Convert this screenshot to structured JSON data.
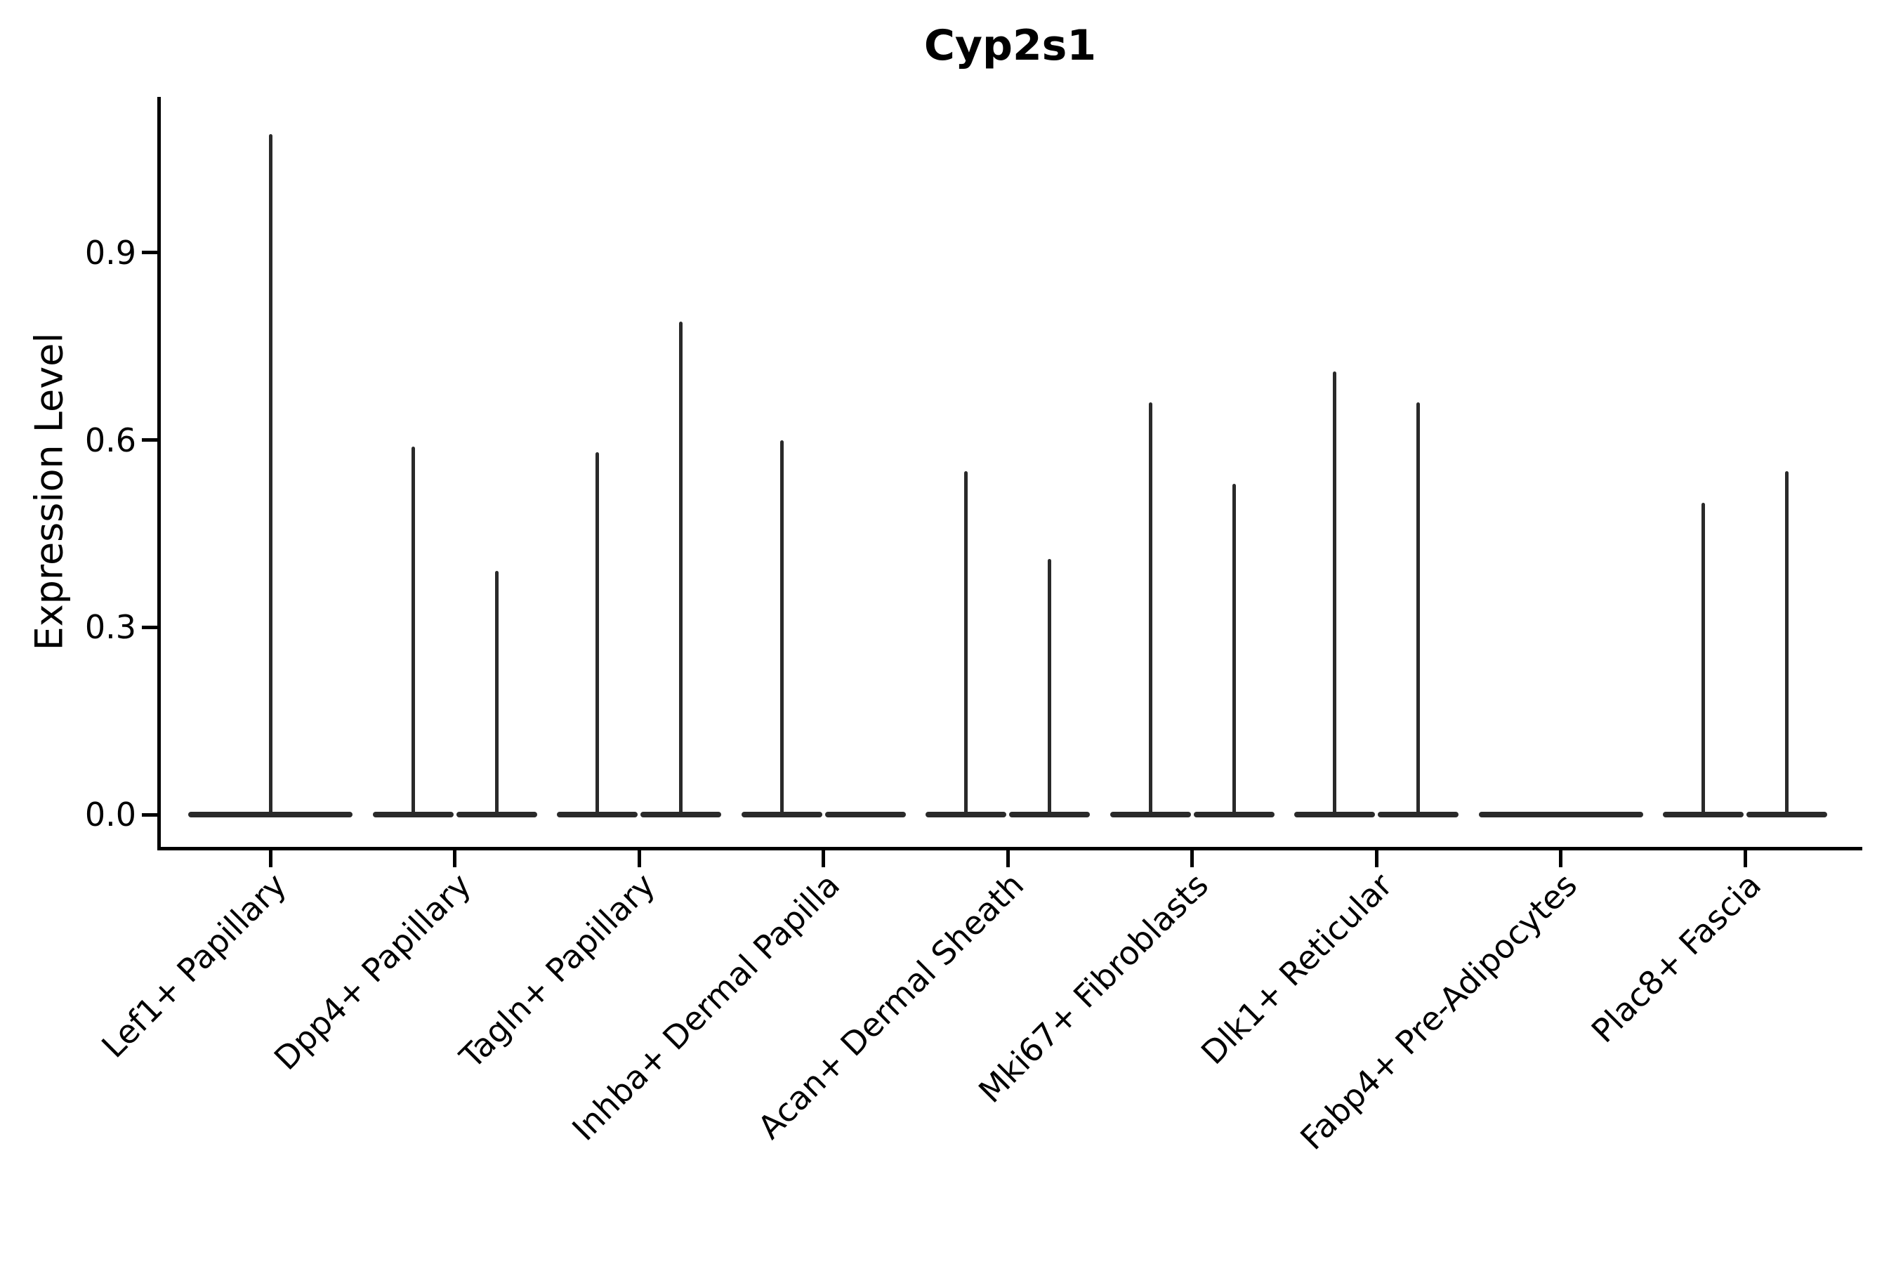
{
  "chart_data": {
    "type": "violin",
    "title": "Cyp2s1",
    "ylabel": "Expression Level",
    "xlabel": "",
    "ylim": [
      -0.05,
      1.15
    ],
    "grid": false,
    "legend": "none",
    "yticks": [
      {
        "value": 0.0,
        "label": "0.0"
      },
      {
        "value": 0.3,
        "label": "0.3"
      },
      {
        "value": 0.6,
        "label": "0.6"
      },
      {
        "value": 0.9,
        "label": "0.9"
      }
    ],
    "categories": [
      "Lef1+ Papillary",
      "Dpp4+ Papillary",
      "Tagln+ Papillary",
      "Inhba+ Dermal Papilla",
      "Acan+ Dermal Sheath",
      "Mki67+ Fibroblasts",
      "Dlk1+ Reticular",
      "Fabp4+ Pre-Adipocytes",
      "Plac8+ Fascia"
    ],
    "groups": [
      {
        "category": "Lef1+ Papillary",
        "violins": [
          {
            "max": 1.09
          }
        ]
      },
      {
        "category": "Dpp4+ Papillary",
        "violins": [
          {
            "max": 0.59
          },
          {
            "max": 0.39
          }
        ]
      },
      {
        "category": "Tagln+ Papillary",
        "violins": [
          {
            "max": 0.58
          },
          {
            "max": 0.79
          }
        ]
      },
      {
        "category": "Inhba+ Dermal Papilla",
        "violins": [
          {
            "max": 0.6
          },
          {
            "max": 0.0
          }
        ]
      },
      {
        "category": "Acan+ Dermal Sheath",
        "violins": [
          {
            "max": 0.55
          },
          {
            "max": 0.41
          }
        ]
      },
      {
        "category": "Mki67+ Fibroblasts",
        "violins": [
          {
            "max": 0.66
          },
          {
            "max": 0.53
          }
        ]
      },
      {
        "category": "Dlk1+ Reticular",
        "violins": [
          {
            "max": 0.71
          },
          {
            "max": 0.66
          }
        ]
      },
      {
        "category": "Fabp4+ Pre-Adipocytes",
        "violins": [
          {
            "max": 0.0
          }
        ]
      },
      {
        "category": "Plac8+ Fascia",
        "violins": [
          {
            "max": 0.5
          },
          {
            "max": 0.55
          }
        ]
      }
    ]
  }
}
